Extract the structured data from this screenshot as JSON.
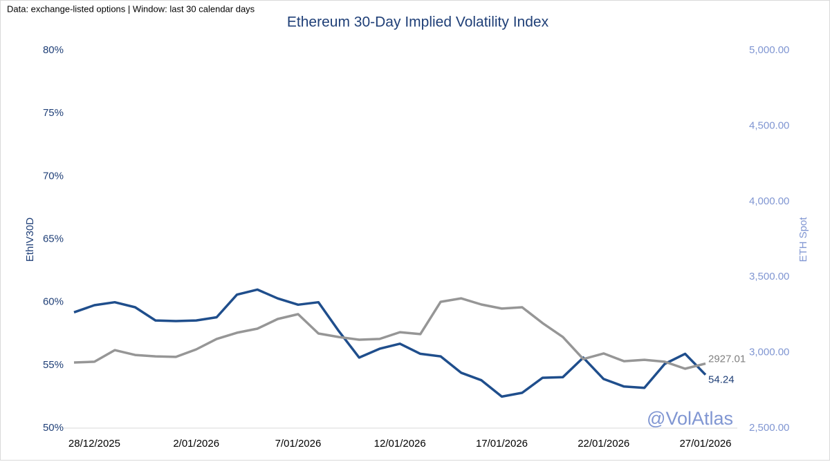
{
  "chart_data": {
    "type": "line",
    "subtitle": "Data: exchange-listed options | Window: last 30 calendar days",
    "title": "Ethereum 30-Day Implied Volatility Index",
    "y_label": "EthIV30D",
    "y2_label": "ETH Spot",
    "watermark": "@VolAtlas",
    "categories": [
      null,
      "28/12/2025",
      null,
      null,
      null,
      null,
      "2/01/2026",
      null,
      null,
      null,
      null,
      "7/01/2026",
      null,
      null,
      null,
      null,
      "12/01/2026",
      null,
      null,
      null,
      null,
      "17/01/2026",
      null,
      null,
      null,
      null,
      "22/01/2026",
      null,
      null,
      null,
      null,
      "27/01/2026"
    ],
    "series": [
      {
        "name": "EthIV30D",
        "color": "#1f4e8c",
        "axis": "y",
        "values": [
          59.2,
          59.76,
          60.0,
          59.6,
          58.55,
          58.5,
          58.55,
          58.8,
          60.6,
          61.0,
          60.3,
          59.8,
          60.0,
          57.7,
          55.6,
          56.3,
          56.7,
          55.9,
          55.7,
          54.4,
          53.8,
          52.5,
          52.8,
          54.0,
          54.05,
          55.6,
          53.9,
          53.3,
          53.2,
          55.1,
          55.9,
          54.24
        ]
      },
      {
        "name": "ETH Spot",
        "color": "#969696",
        "axis": "y2",
        "values": [
          2934,
          2939,
          3016,
          2984,
          2975,
          2971,
          3021,
          3090,
          3131,
          3158,
          3222,
          3254,
          3126,
          3103,
          3085,
          3090,
          3135,
          3122,
          3336,
          3359,
          3318,
          3291,
          3300,
          3195,
          3103,
          2957,
          2994,
          2943,
          2952,
          2939,
          2893,
          2927.01
        ]
      }
    ],
    "ylim": [
      50,
      80
    ],
    "yticks": [
      {
        "value": 50,
        "label": "50%"
      },
      {
        "value": 55,
        "label": "55%"
      },
      {
        "value": 60,
        "label": "60%"
      },
      {
        "value": 65,
        "label": "65%"
      },
      {
        "value": 70,
        "label": "70%"
      },
      {
        "value": 75,
        "label": "75%"
      },
      {
        "value": 80,
        "label": "80%"
      }
    ],
    "y2lim": [
      2500,
      5000
    ],
    "y2ticks": [
      {
        "value": 2500,
        "label": "2,500.00"
      },
      {
        "value": 3000,
        "label": "3,000.00"
      },
      {
        "value": 3500,
        "label": "3,500.00"
      },
      {
        "value": 4000,
        "label": "4,000.00"
      },
      {
        "value": 4500,
        "label": "4,500.00"
      },
      {
        "value": 5000,
        "label": "5,000.00"
      }
    ],
    "y_color": "#1f3f77",
    "y2_color": "#8096d2",
    "grid": false
  }
}
